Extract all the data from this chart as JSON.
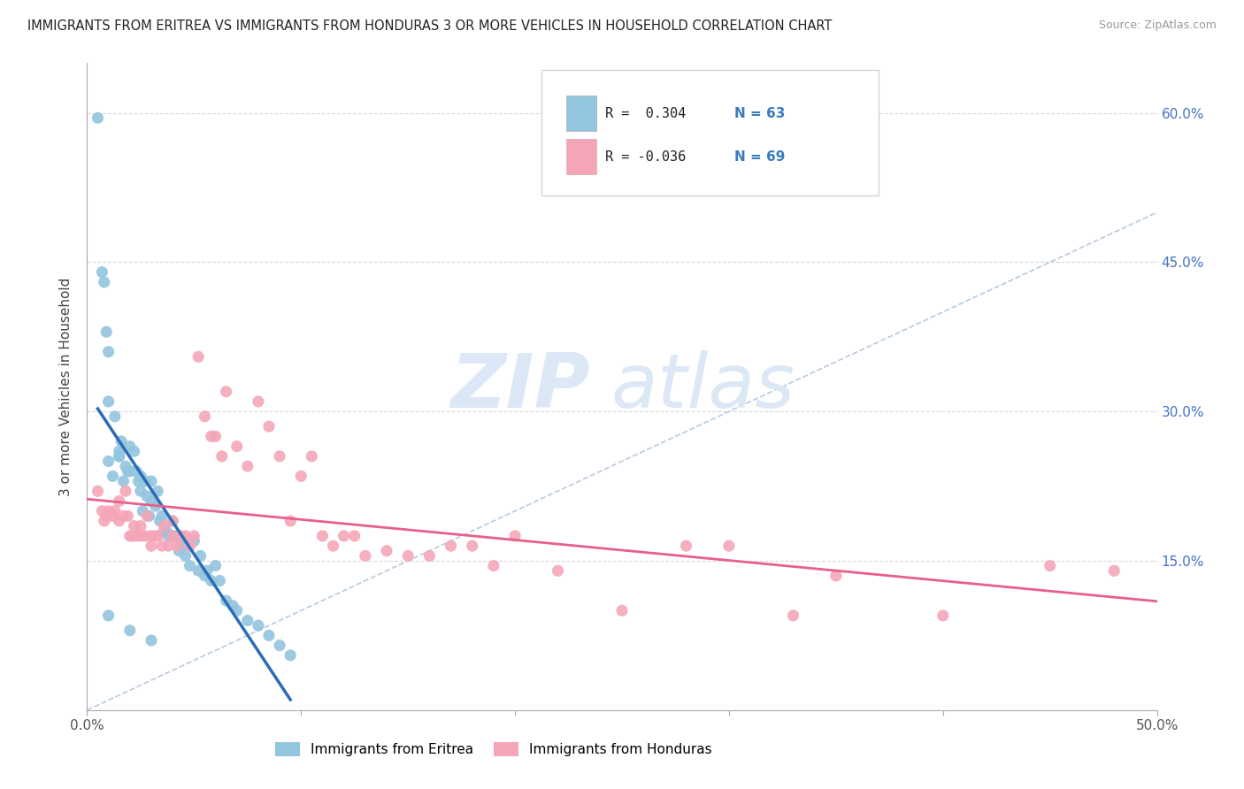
{
  "title": "IMMIGRANTS FROM ERITREA VS IMMIGRANTS FROM HONDURAS 3 OR MORE VEHICLES IN HOUSEHOLD CORRELATION CHART",
  "source": "Source: ZipAtlas.com",
  "ylabel": "3 or more Vehicles in Household",
  "xlim": [
    0.0,
    0.5
  ],
  "ylim": [
    0.0,
    0.65
  ],
  "xtick_positions": [
    0.0,
    0.1,
    0.2,
    0.3,
    0.4,
    0.5
  ],
  "xtick_labels": [
    "0.0%",
    "",
    "",
    "",
    "",
    "50.0%"
  ],
  "ytick_positions": [
    0.0,
    0.15,
    0.3,
    0.45,
    0.6
  ],
  "ytick_labels_right": [
    "",
    "15.0%",
    "30.0%",
    "45.0%",
    "60.0%"
  ],
  "eritrea_color": "#92c5de",
  "honduras_color": "#f4a6b8",
  "eritrea_line_color": "#2b6cb8",
  "honduras_line_color": "#e8608a",
  "diagonal_color": "#b0c4de",
  "R_eritrea": 0.304,
  "N_eritrea": 63,
  "R_honduras": -0.036,
  "N_honduras": 69,
  "watermark_zip": "ZIP",
  "watermark_atlas": "atlas",
  "legend_label_eritrea": "Immigrants from Eritrea",
  "legend_label_honduras": "Immigrants from Honduras",
  "eritrea_x": [
    0.005,
    0.007,
    0.008,
    0.009,
    0.01,
    0.01,
    0.01,
    0.012,
    0.013,
    0.015,
    0.015,
    0.015,
    0.016,
    0.017,
    0.018,
    0.019,
    0.02,
    0.02,
    0.022,
    0.023,
    0.024,
    0.025,
    0.025,
    0.026,
    0.027,
    0.028,
    0.029,
    0.03,
    0.03,
    0.032,
    0.033,
    0.034,
    0.035,
    0.036,
    0.037,
    0.038,
    0.04,
    0.04,
    0.042,
    0.043,
    0.044,
    0.045,
    0.046,
    0.048,
    0.05,
    0.052,
    0.053,
    0.055,
    0.056,
    0.058,
    0.06,
    0.062,
    0.065,
    0.068,
    0.07,
    0.075,
    0.08,
    0.085,
    0.09,
    0.01,
    0.02,
    0.03,
    0.095
  ],
  "eritrea_y": [
    0.595,
    0.44,
    0.43,
    0.38,
    0.36,
    0.31,
    0.25,
    0.235,
    0.295,
    0.255,
    0.255,
    0.26,
    0.27,
    0.23,
    0.245,
    0.24,
    0.265,
    0.24,
    0.26,
    0.24,
    0.23,
    0.22,
    0.235,
    0.2,
    0.23,
    0.215,
    0.195,
    0.23,
    0.21,
    0.205,
    0.22,
    0.19,
    0.195,
    0.18,
    0.18,
    0.175,
    0.19,
    0.175,
    0.175,
    0.16,
    0.17,
    0.165,
    0.155,
    0.145,
    0.17,
    0.14,
    0.155,
    0.135,
    0.14,
    0.13,
    0.145,
    0.13,
    0.11,
    0.105,
    0.1,
    0.09,
    0.085,
    0.075,
    0.065,
    0.095,
    0.08,
    0.07,
    0.055
  ],
  "honduras_x": [
    0.005,
    0.007,
    0.008,
    0.009,
    0.01,
    0.012,
    0.013,
    0.015,
    0.015,
    0.017,
    0.018,
    0.019,
    0.02,
    0.021,
    0.022,
    0.023,
    0.025,
    0.025,
    0.027,
    0.028,
    0.03,
    0.03,
    0.032,
    0.033,
    0.035,
    0.036,
    0.038,
    0.04,
    0.04,
    0.042,
    0.044,
    0.046,
    0.048,
    0.05,
    0.052,
    0.055,
    0.058,
    0.06,
    0.063,
    0.065,
    0.07,
    0.075,
    0.08,
    0.085,
    0.09,
    0.095,
    0.1,
    0.105,
    0.11,
    0.115,
    0.12,
    0.125,
    0.13,
    0.14,
    0.15,
    0.16,
    0.17,
    0.18,
    0.19,
    0.2,
    0.22,
    0.25,
    0.28,
    0.3,
    0.33,
    0.35,
    0.4,
    0.45,
    0.48
  ],
  "honduras_y": [
    0.22,
    0.2,
    0.19,
    0.195,
    0.2,
    0.195,
    0.2,
    0.19,
    0.21,
    0.195,
    0.22,
    0.195,
    0.175,
    0.175,
    0.185,
    0.175,
    0.185,
    0.175,
    0.175,
    0.195,
    0.175,
    0.165,
    0.175,
    0.175,
    0.165,
    0.185,
    0.165,
    0.19,
    0.175,
    0.165,
    0.175,
    0.175,
    0.165,
    0.175,
    0.355,
    0.295,
    0.275,
    0.275,
    0.255,
    0.32,
    0.265,
    0.245,
    0.31,
    0.285,
    0.255,
    0.19,
    0.235,
    0.255,
    0.175,
    0.165,
    0.175,
    0.175,
    0.155,
    0.16,
    0.155,
    0.155,
    0.165,
    0.165,
    0.145,
    0.175,
    0.14,
    0.1,
    0.165,
    0.165,
    0.095,
    0.135,
    0.095,
    0.145,
    0.14
  ]
}
